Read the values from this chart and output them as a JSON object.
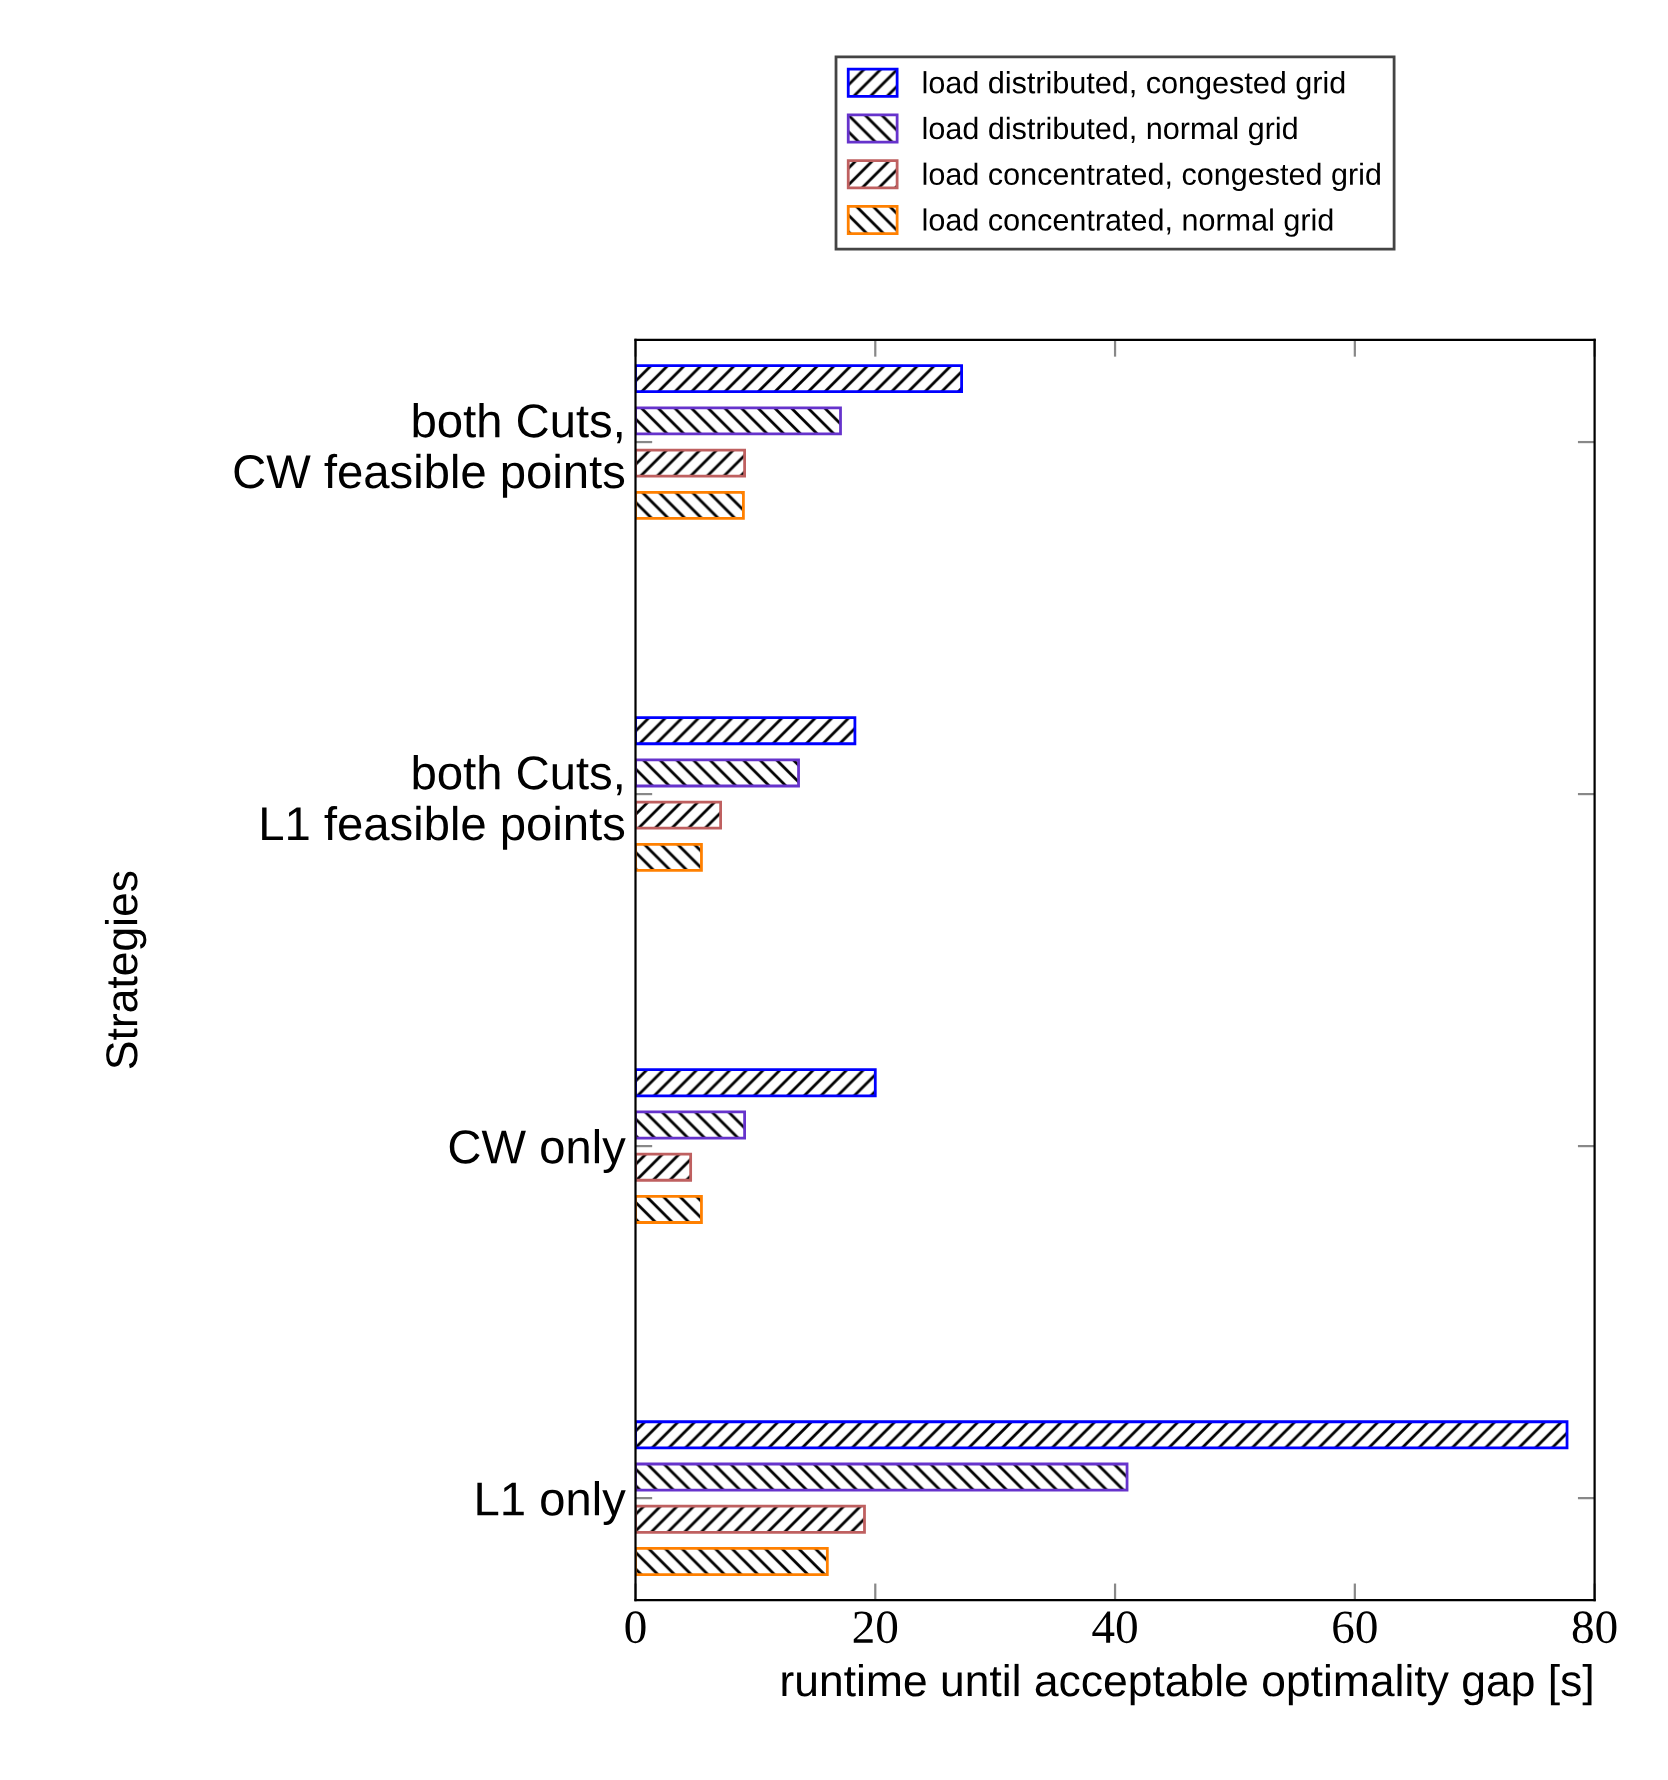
{
  "chart_data": {
    "type": "bar",
    "orientation": "horizontal",
    "xlabel": "runtime until acceptable optimality gap [s]",
    "ylabel": "Strategies",
    "categories": [
      "both Cuts,\nCW feasible points",
      "both Cuts,\nL1 feasible points",
      "CW only",
      "L1 only"
    ],
    "series": [
      {
        "name": "load distributed, congested grid",
        "color": "#0000ff",
        "values": [
          27.2,
          18.3,
          20.0,
          77.7
        ]
      },
      {
        "name": "load distributed, normal grid",
        "color": "#6633cc",
        "values": [
          17.1,
          13.6,
          9.1,
          41.0
        ]
      },
      {
        "name": "load concentrated, congested grid",
        "color": "#bf6060",
        "values": [
          9.1,
          7.1,
          4.6,
          19.1
        ]
      },
      {
        "name": "load concentrated, normal grid",
        "color": "#ff8000",
        "values": [
          9.0,
          5.5,
          5.5,
          16.0
        ]
      }
    ],
    "xlim": [
      0,
      80
    ],
    "xticks": [
      0,
      20,
      40,
      60,
      80
    ],
    "grid": false,
    "legend": "top"
  }
}
